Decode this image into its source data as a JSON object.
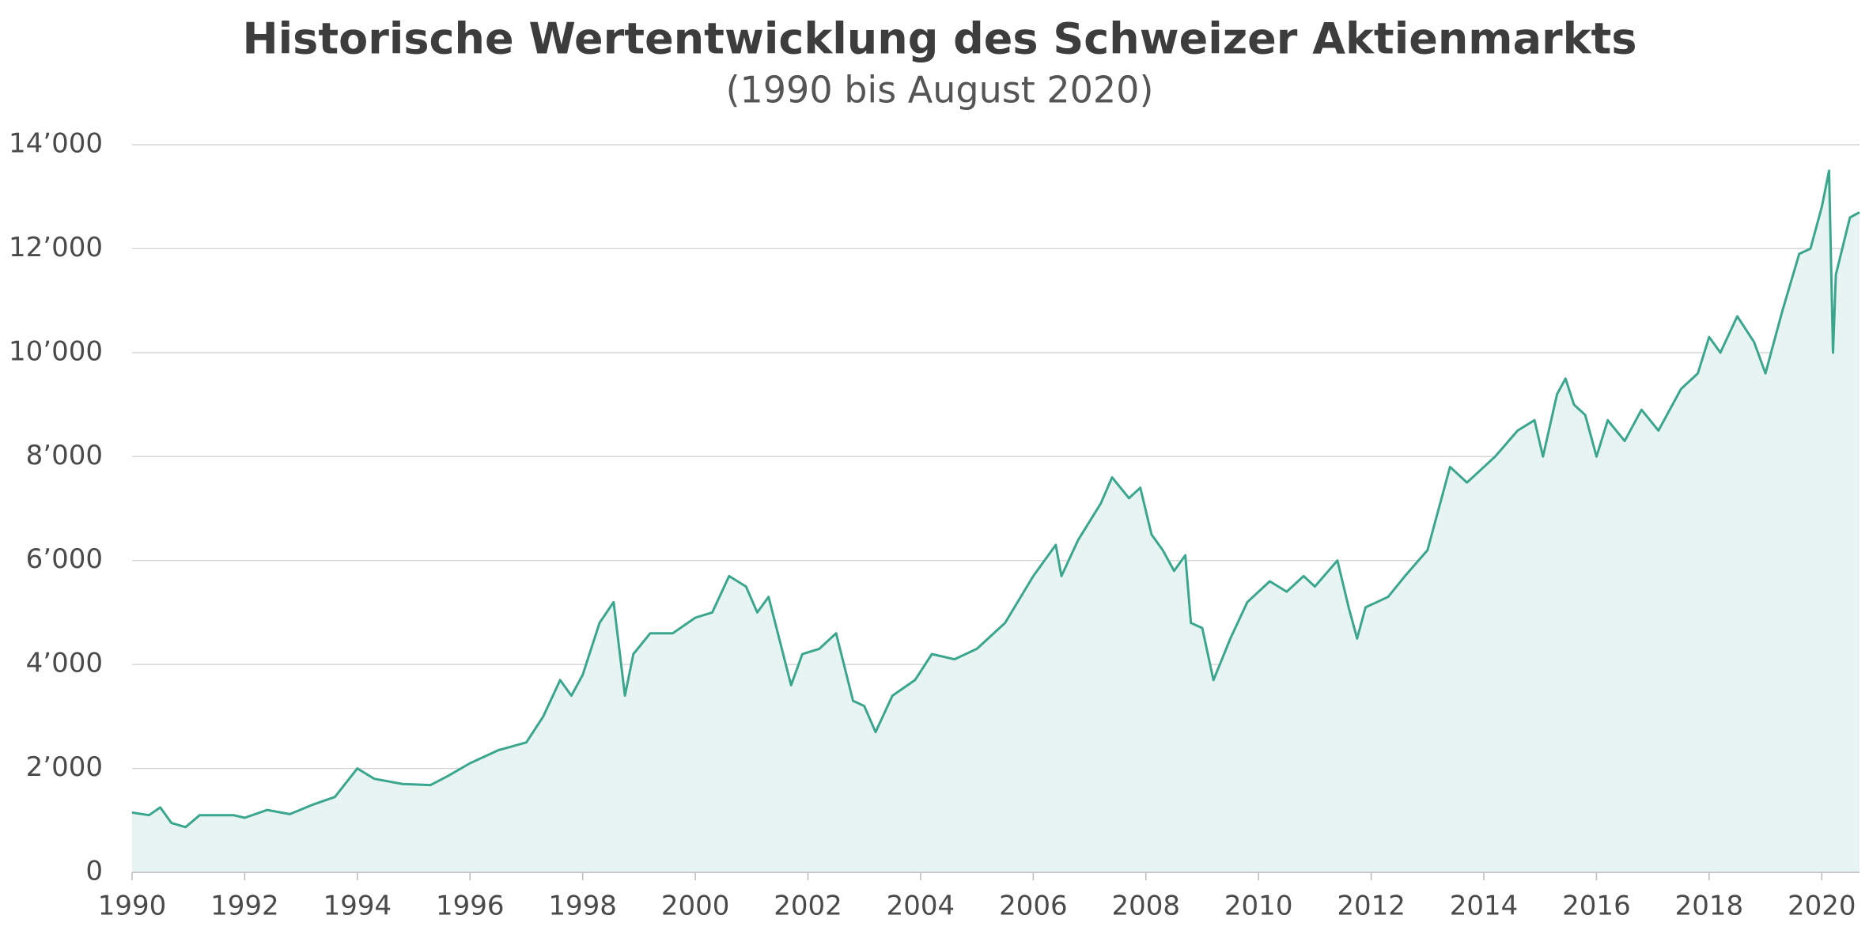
{
  "chart_data": {
    "type": "area",
    "title": "Historische Wertentwicklung des Schweizer Aktienmarkts",
    "subtitle": "(1990 bis August 2020)",
    "color": "#3aa68e",
    "fill_color": "#e8f4f2",
    "grid": true,
    "xlim": [
      1990,
      2020.67
    ],
    "ylim": [
      0,
      14000
    ],
    "xticks": [
      1990,
      1992,
      1994,
      1996,
      1998,
      2000,
      2002,
      2004,
      2006,
      2008,
      2010,
      2012,
      2014,
      2016,
      2018,
      2020
    ],
    "yticks": [
      0,
      {
        "value": 2000,
        "label": "2’000"
      },
      {
        "value": 4000,
        "label": "4’000"
      },
      {
        "value": 6000,
        "label": "6’000"
      },
      {
        "value": 8000,
        "label": "8’000"
      },
      {
        "value": 10000,
        "label": "10’000"
      },
      {
        "value": 12000,
        "label": "12’000"
      },
      {
        "value": 14000,
        "label": "14’000"
      }
    ],
    "x": [
      1990.0,
      1990.3,
      1990.5,
      1990.7,
      1990.95,
      1991.2,
      1991.8,
      1992.0,
      1992.4,
      1992.8,
      1993.2,
      1993.6,
      1994.0,
      1994.3,
      1994.8,
      1995.3,
      1995.6,
      1996.0,
      1996.5,
      1997.0,
      1997.3,
      1997.6,
      1997.8,
      1998.0,
      1998.3,
      1998.55,
      1998.75,
      1998.9,
      1999.2,
      1999.6,
      2000.0,
      2000.3,
      2000.6,
      2000.9,
      2001.1,
      2001.3,
      2001.7,
      2001.9,
      2002.2,
      2002.5,
      2002.8,
      2003.0,
      2003.2,
      2003.5,
      2003.9,
      2004.2,
      2004.6,
      2005.0,
      2005.5,
      2006.0,
      2006.4,
      2006.5,
      2006.8,
      2007.2,
      2007.4,
      2007.7,
      2007.9,
      2008.1,
      2008.3,
      2008.5,
      2008.7,
      2008.8,
      2009.0,
      2009.2,
      2009.5,
      2009.8,
      2010.2,
      2010.5,
      2010.8,
      2011.0,
      2011.4,
      2011.6,
      2011.75,
      2011.9,
      2012.3,
      2012.6,
      2013.0,
      2013.4,
      2013.7,
      2014.2,
      2014.6,
      2014.9,
      2015.05,
      2015.3,
      2015.45,
      2015.6,
      2015.8,
      2016.0,
      2016.2,
      2016.5,
      2016.8,
      2017.1,
      2017.5,
      2017.8,
      2018.0,
      2018.2,
      2018.5,
      2018.8,
      2019.0,
      2019.3,
      2019.6,
      2019.8,
      2020.0,
      2020.13,
      2020.2,
      2020.25,
      2020.5,
      2020.67
    ],
    "series": [
      {
        "values": [
          1150,
          1100,
          1250,
          950,
          870,
          1100,
          1100,
          1050,
          1200,
          1120,
          1300,
          1450,
          2000,
          1800,
          1700,
          1680,
          1850,
          2100,
          2350,
          2500,
          3000,
          3700,
          3400,
          3800,
          4800,
          5200,
          3400,
          4200,
          4600,
          4600,
          4900,
          5000,
          5700,
          5500,
          5000,
          5300,
          3600,
          4200,
          4300,
          4600,
          3300,
          3200,
          2700,
          3400,
          3700,
          4200,
          4100,
          4300,
          4800,
          5700,
          6300,
          5700,
          6400,
          7100,
          7600,
          7200,
          7400,
          6500,
          6200,
          5800,
          6100,
          4800,
          4700,
          3700,
          4500,
          5200,
          5600,
          5400,
          5700,
          5500,
          6000,
          5100,
          4500,
          5100,
          5300,
          5700,
          6200,
          7800,
          7500,
          8000,
          8500,
          8700,
          8000,
          9200,
          9500,
          9000,
          8800,
          8000,
          8700,
          8300,
          8900,
          8500,
          9300,
          9600,
          10300,
          10000,
          10700,
          10200,
          9600,
          10800,
          11900,
          12000,
          12800,
          13500,
          10000,
          11500,
          12600,
          12700
        ]
      }
    ]
  }
}
